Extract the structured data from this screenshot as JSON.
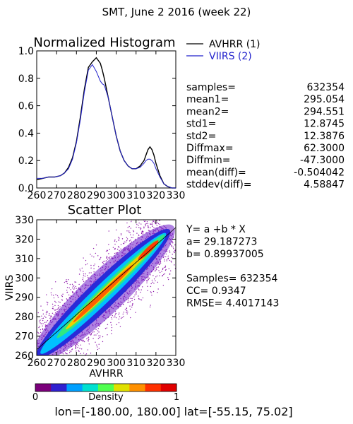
{
  "title": "SMT,  June 2 2016 (week 22)",
  "chart_data": [
    {
      "type": "line",
      "title": "Normalized Histogram",
      "xlabel": "",
      "ylabel": "",
      "xlim": [
        260,
        330
      ],
      "ylim": [
        0.0,
        1.0
      ],
      "xticks": [
        "260",
        "270",
        "280",
        "290",
        "300",
        "310",
        "320",
        "330"
      ],
      "yticks": [
        "0.0",
        "0.2",
        "0.4",
        "0.6",
        "0.8",
        "1.0"
      ],
      "x": [
        260,
        263,
        266,
        269,
        272,
        274,
        276,
        278,
        280,
        282,
        284,
        286,
        288,
        290,
        292,
        293,
        294,
        296,
        298,
        300,
        302,
        304,
        306,
        308,
        310,
        312,
        314,
        315,
        316,
        317,
        318,
        319,
        320,
        322,
        324,
        326,
        328,
        330
      ],
      "series": [
        {
          "name": "AVHRR (1)",
          "color": "#000000",
          "values": [
            0.06,
            0.07,
            0.08,
            0.08,
            0.09,
            0.11,
            0.15,
            0.22,
            0.34,
            0.52,
            0.72,
            0.88,
            0.92,
            0.95,
            0.91,
            0.86,
            0.8,
            0.66,
            0.52,
            0.38,
            0.27,
            0.2,
            0.16,
            0.14,
            0.14,
            0.16,
            0.2,
            0.24,
            0.28,
            0.3,
            0.28,
            0.24,
            0.18,
            0.09,
            0.03,
            0.01,
            0.0,
            0.0
          ]
        },
        {
          "name": "VIIRS (2)",
          "color": "#2222cc",
          "values": [
            0.07,
            0.07,
            0.08,
            0.08,
            0.09,
            0.11,
            0.14,
            0.21,
            0.33,
            0.5,
            0.7,
            0.86,
            0.9,
            0.85,
            0.78,
            0.76,
            0.75,
            0.66,
            0.52,
            0.38,
            0.27,
            0.2,
            0.16,
            0.14,
            0.14,
            0.15,
            0.18,
            0.2,
            0.21,
            0.21,
            0.2,
            0.18,
            0.14,
            0.08,
            0.03,
            0.01,
            0.0,
            0.0
          ]
        }
      ]
    },
    {
      "type": "scatter",
      "title": "Scatter Plot",
      "xlabel": "AVHRR",
      "ylabel": "VIIRS",
      "xlim": [
        260,
        330
      ],
      "ylim": [
        260,
        330
      ],
      "xticks": [
        "260",
        "270",
        "280",
        "290",
        "300",
        "310",
        "320",
        "330"
      ],
      "yticks": [
        "260",
        "270",
        "280",
        "290",
        "300",
        "310",
        "320",
        "330"
      ],
      "fit": {
        "a": 29.187273,
        "b": 0.89937005
      },
      "colorbar": {
        "label": "Density",
        "min": "0",
        "max": "1",
        "colors": [
          "#7b007b",
          "#3020d0",
          "#00a0ff",
          "#00e0d0",
          "#50ff50",
          "#e0e000",
          "#ff9000",
          "#ff3000",
          "#e00000"
        ]
      }
    }
  ],
  "stats": [
    {
      "label": "samples=",
      "value": "632354"
    },
    {
      "label": "mean1=",
      "value": "295.054"
    },
    {
      "label": "mean2=",
      "value": "294.551"
    },
    {
      "label": "std1=",
      "value": "12.8745"
    },
    {
      "label": "std2=",
      "value": "12.3876"
    },
    {
      "label": "Diffmax=",
      "value": "62.3000"
    },
    {
      "label": "Diffmin=",
      "value": "-47.3000"
    },
    {
      "label": "mean(diff)=",
      "value": "-0.504042"
    },
    {
      "label": "stddev(diff)=",
      "value": "4.58847"
    }
  ],
  "regression_text": [
    "Y= a +b * X",
    "a= 29.187273",
    "b= 0.89937005",
    "",
    "Samples= 632354",
    "CC=  0.9347",
    "RMSE= 4.4017143"
  ],
  "range_text": "lon=[-180.00, 180.00] lat=[-55.15, 75.02]"
}
